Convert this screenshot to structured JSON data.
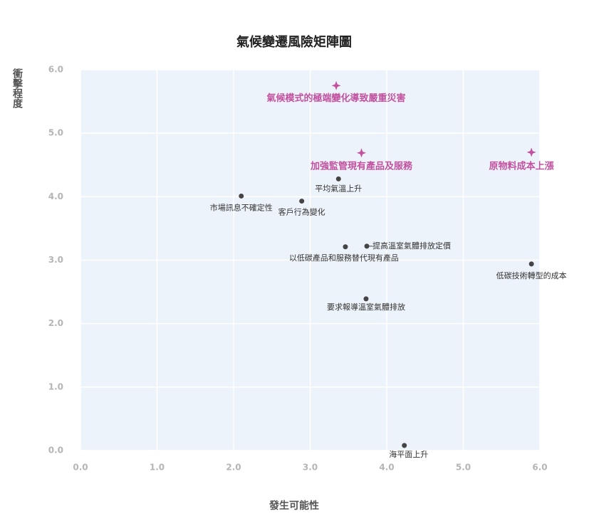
{
  "chart_data": {
    "type": "scatter",
    "title": "氣候變遷風險矩陣圖",
    "xlabel": "發生可能性",
    "ylabel": "衝擊程度",
    "xlim": [
      0,
      6
    ],
    "ylim": [
      0,
      6
    ],
    "xticks": [
      {
        "value": 0,
        "label": "0.0"
      },
      {
        "value": 1,
        "label": "1.0"
      },
      {
        "value": 2,
        "label": "2.0"
      },
      {
        "value": 3,
        "label": "3.0"
      },
      {
        "value": 4,
        "label": "4.0"
      },
      {
        "value": 5,
        "label": "5.0"
      },
      {
        "value": 6,
        "label": "6.0"
      }
    ],
    "yticks": [
      {
        "value": 0,
        "label": "0.0"
      },
      {
        "value": 1,
        "label": "1.0"
      },
      {
        "value": 2,
        "label": "2.0"
      },
      {
        "value": 3,
        "label": "3.0"
      },
      {
        "value": 4,
        "label": "4.0"
      },
      {
        "value": 5,
        "label": "5.0"
      },
      {
        "value": 6,
        "label": "6.0"
      }
    ],
    "grid": true,
    "background": "#edf3fa",
    "series": [
      {
        "color": "#c2519f",
        "marker": "star",
        "labels": [
          "氣候模式的極端變化導致嚴重災害",
          "加強監管現有產品及服務",
          "原物料成本上漲"
        ],
        "x": [
          3.34,
          3.67,
          5.89
        ],
        "values": [
          5.75,
          4.69,
          4.7
        ]
      },
      {
        "color": "#444444",
        "marker": "circle",
        "labels": [
          "平均氣溫上升",
          "市場訊息不確定性",
          "客戶行為變化",
          "提高溫室氣體排放定價",
          "以低碳產品和服務替代現有產品",
          "低碳技術轉型的成本",
          "要求報導溫室氣體排放",
          "海平面上升"
        ],
        "x": [
          3.37,
          2.1,
          2.89,
          3.74,
          3.46,
          5.89,
          3.73,
          4.23
        ],
        "values": [
          4.28,
          4.01,
          3.93,
          3.22,
          3.21,
          2.94,
          2.39,
          0.08
        ]
      }
    ]
  }
}
